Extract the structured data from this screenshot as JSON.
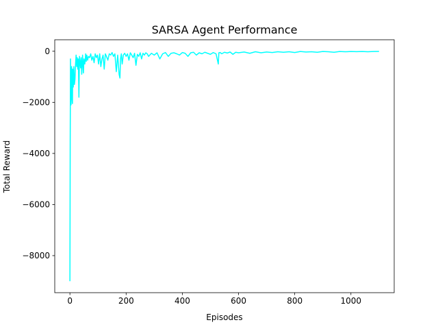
{
  "chart_data": {
    "type": "line",
    "title": "SARSA Agent Performance",
    "xlabel": "Episodes",
    "ylabel": "Total Reward",
    "xlim": [
      -54,
      1154
    ],
    "ylim": [
      -9450,
      450
    ],
    "xticks": [
      0,
      200,
      400,
      600,
      800,
      1000
    ],
    "yticks": [
      -8000,
      -6000,
      -4000,
      -2000,
      0
    ],
    "grid": false,
    "legend": false,
    "series": [
      {
        "color": "#00ffff",
        "x": [
          0,
          1,
          2,
          3,
          4,
          5,
          6,
          7,
          8,
          9,
          10,
          12,
          14,
          16,
          18,
          20,
          22,
          24,
          26,
          28,
          30,
          32,
          34,
          36,
          38,
          40,
          42,
          45,
          48,
          50,
          53,
          56,
          58,
          60,
          63,
          66,
          70,
          74,
          78,
          82,
          86,
          90,
          94,
          98,
          102,
          106,
          110,
          114,
          118,
          122,
          126,
          130,
          135,
          140,
          145,
          150,
          155,
          160,
          165,
          170,
          175,
          178,
          180,
          183,
          186,
          190,
          195,
          200,
          205,
          210,
          215,
          220,
          225,
          230,
          235,
          240,
          245,
          250,
          255,
          260,
          265,
          270,
          275,
          280,
          290,
          300,
          310,
          320,
          330,
          340,
          350,
          360,
          370,
          380,
          390,
          400,
          410,
          420,
          430,
          440,
          450,
          460,
          470,
          480,
          490,
          500,
          510,
          520,
          528,
          530,
          535,
          540,
          550,
          560,
          570,
          580,
          590,
          600,
          620,
          640,
          660,
          680,
          700,
          720,
          740,
          760,
          780,
          800,
          820,
          840,
          860,
          880,
          900,
          920,
          940,
          960,
          980,
          1000,
          1020,
          1040,
          1060,
          1080,
          1100
        ],
        "y": [
          -9000,
          -3500,
          -300,
          -1800,
          -2100,
          -1200,
          -600,
          -1000,
          -1900,
          -2050,
          -700,
          -1400,
          -600,
          -1300,
          -1100,
          -500,
          -150,
          -600,
          -250,
          -700,
          -300,
          -1800,
          -200,
          -400,
          -650,
          -250,
          -900,
          -150,
          -850,
          -300,
          -500,
          -100,
          -400,
          -150,
          -350,
          -200,
          -250,
          -100,
          -350,
          -200,
          -450,
          -100,
          -250,
          -150,
          -500,
          -100,
          -600,
          -300,
          -150,
          -700,
          -100,
          -200,
          -350,
          -100,
          -150,
          -50,
          -200,
          -100,
          -800,
          -150,
          -900,
          -1050,
          -300,
          -100,
          -500,
          -150,
          -80,
          -200,
          -100,
          -350,
          -60,
          -150,
          -250,
          -80,
          -550,
          -120,
          -200,
          -60,
          -300,
          -80,
          -150,
          -60,
          -100,
          -200,
          -80,
          -150,
          -60,
          -300,
          -100,
          -50,
          -200,
          -80,
          -60,
          -100,
          -150,
          -50,
          -80,
          -200,
          -60,
          -40,
          -150,
          -60,
          -100,
          -40,
          -80,
          -120,
          -50,
          -100,
          -500,
          -60,
          -50,
          -100,
          -40,
          -70,
          -30,
          -120,
          -40,
          -60,
          -30,
          -80,
          -20,
          -60,
          -30,
          -50,
          -20,
          -40,
          -20,
          -50,
          -10,
          -30,
          -20,
          -40,
          -10,
          -20,
          -40,
          -10,
          -20,
          -10,
          -15,
          -10,
          -20,
          -10,
          -5
        ]
      }
    ]
  }
}
